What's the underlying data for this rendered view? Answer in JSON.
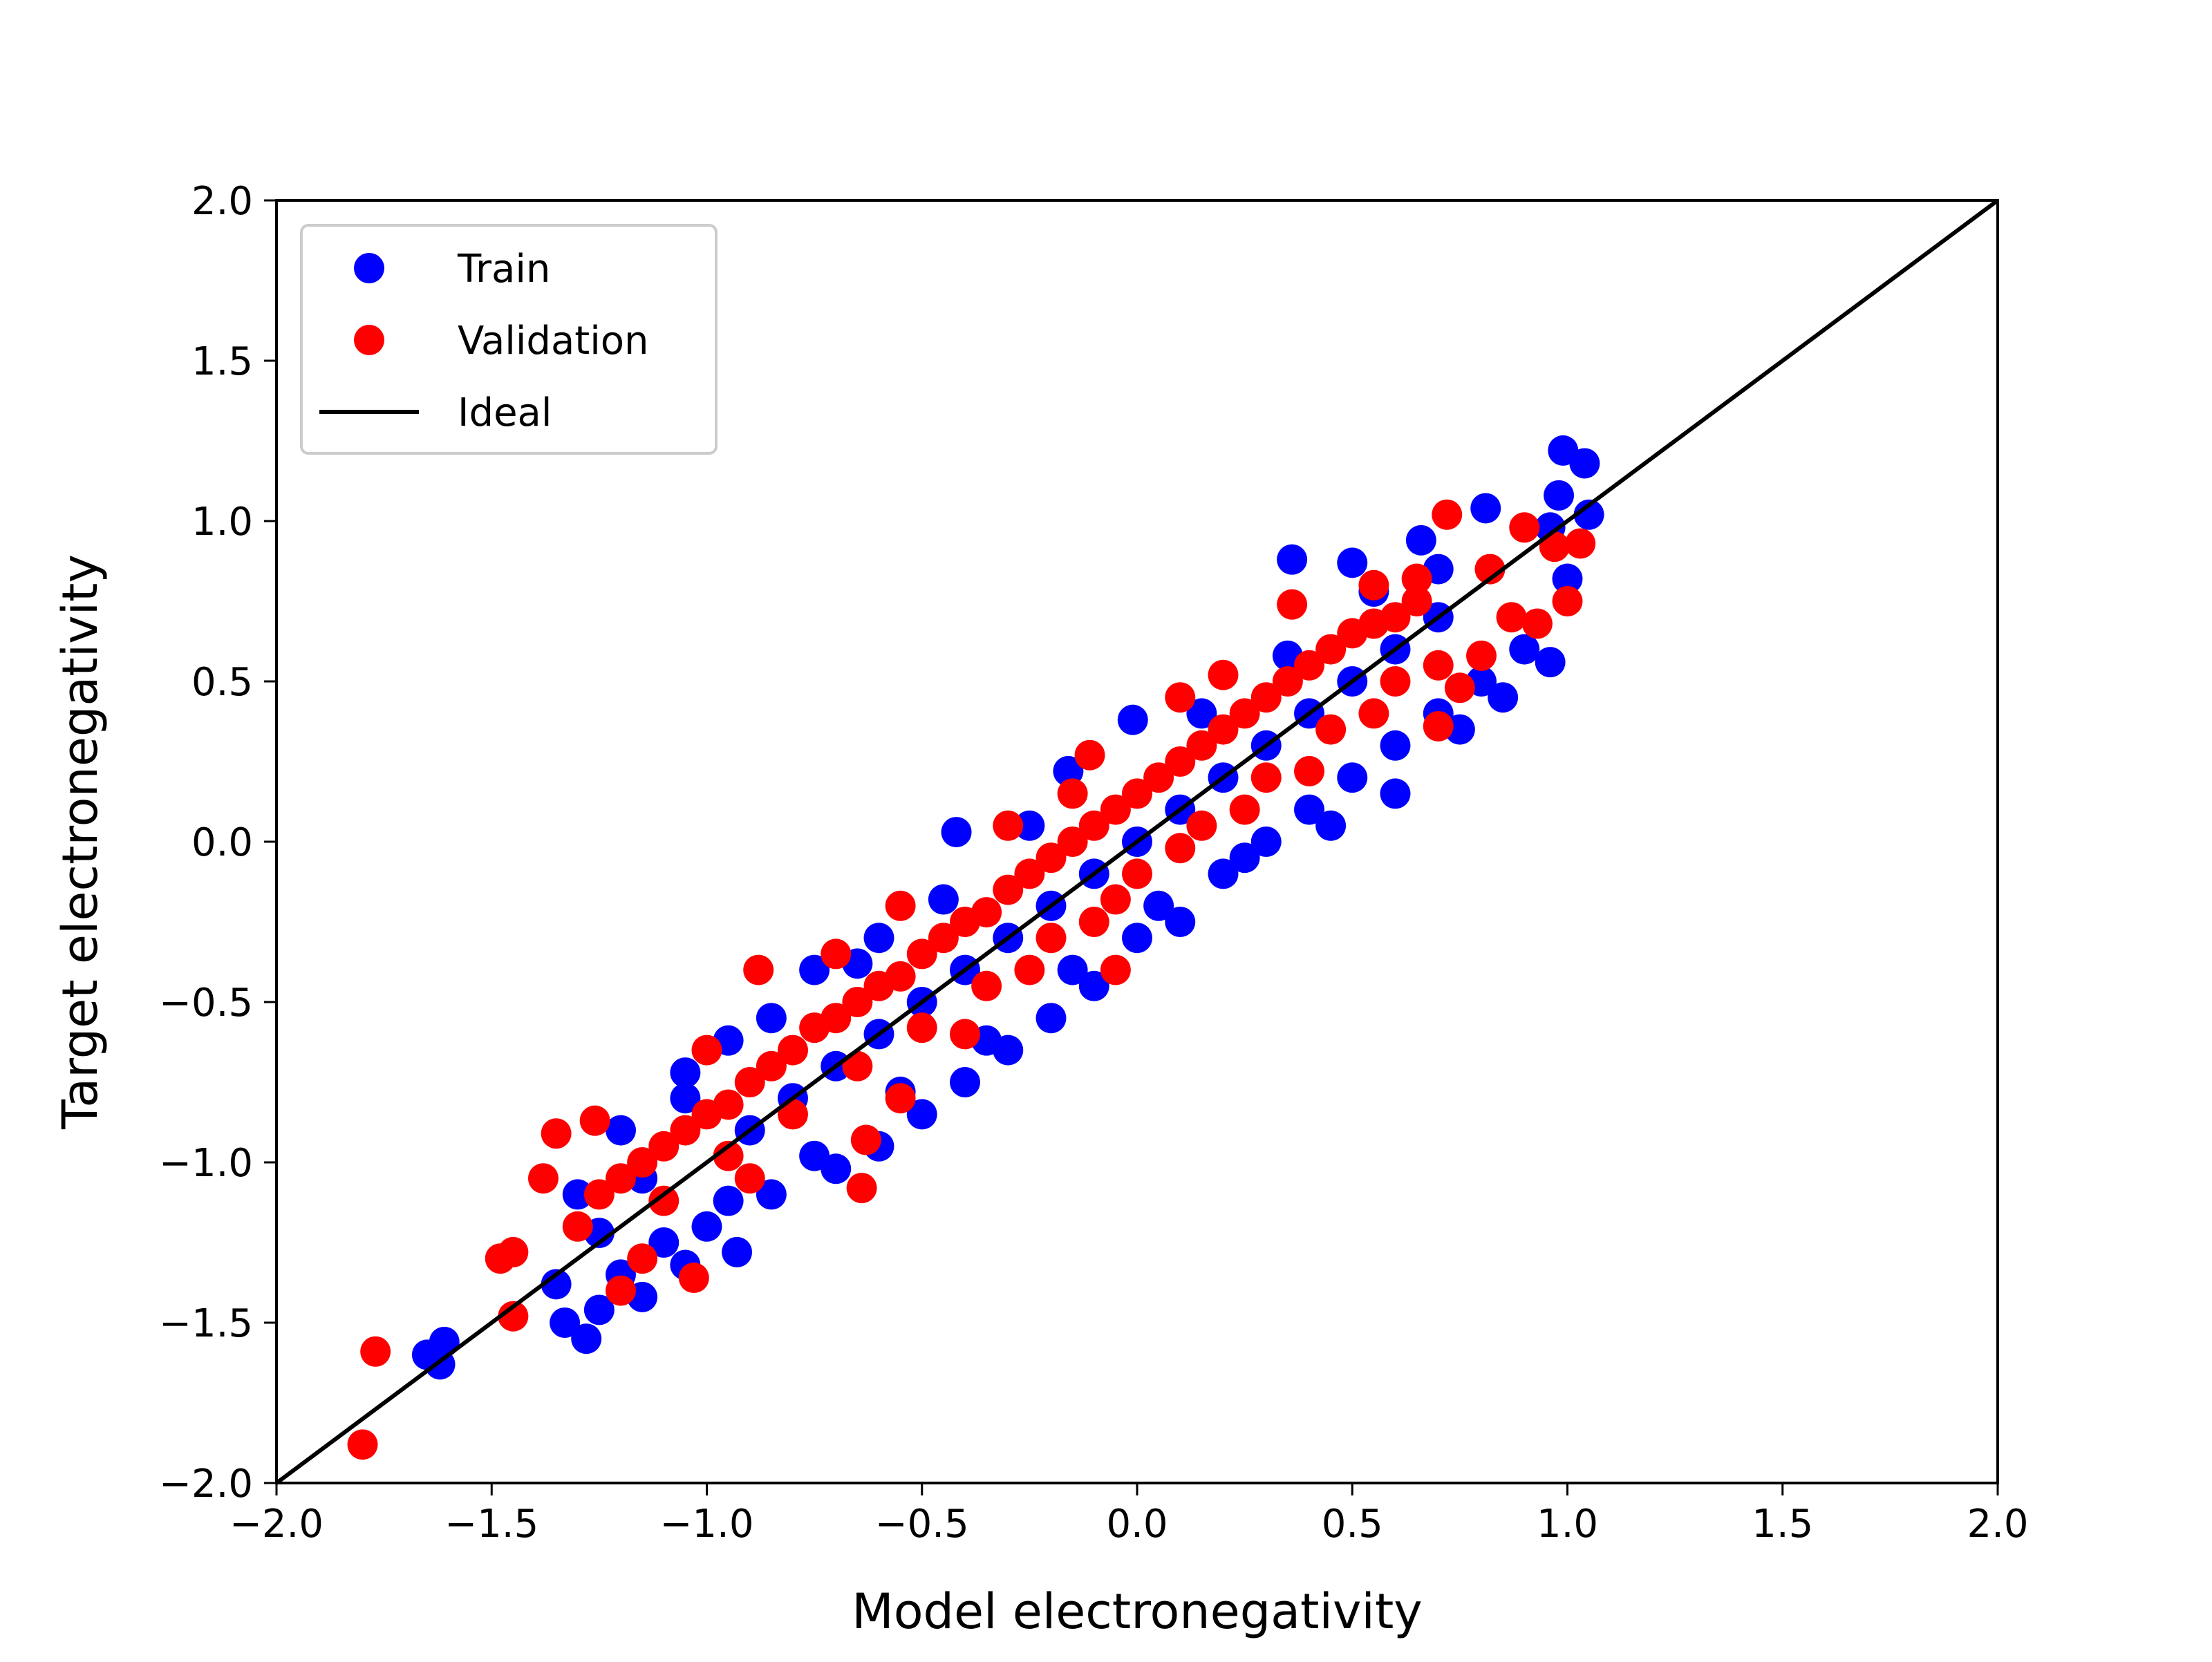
{
  "chart_data": {
    "type": "scatter",
    "title": "",
    "xlabel": "Model electronegativity",
    "ylabel": "Target electronegativity",
    "xlim": [
      -2.0,
      2.0
    ],
    "ylim": [
      -2.0,
      2.0
    ],
    "xticks": [
      "−2.0",
      "−1.5",
      "−1.0",
      "−0.5",
      "0.0",
      "0.5",
      "1.0",
      "1.5",
      "2.0"
    ],
    "yticks": [
      "−2.0",
      "−1.5",
      "−1.0",
      "−0.5",
      "0.0",
      "0.5",
      "1.0",
      "1.5",
      "2.0"
    ],
    "grid": false,
    "legend_position": "top-left",
    "series": [
      {
        "name": "Train",
        "color": "#0000ff",
        "marker": "circle",
        "points": [
          [
            -1.65,
            -1.6
          ],
          [
            -1.62,
            -1.63
          ],
          [
            -1.61,
            -1.56
          ],
          [
            -1.33,
            -1.5
          ],
          [
            -1.28,
            -1.55
          ],
          [
            -1.25,
            -1.46
          ],
          [
            -1.15,
            -1.42
          ],
          [
            -1.05,
            -1.32
          ],
          [
            -0.93,
            -1.28
          ],
          [
            -1.35,
            -1.38
          ],
          [
            -1.2,
            -1.35
          ],
          [
            -1.1,
            -1.25
          ],
          [
            -1.0,
            -1.2
          ],
          [
            -0.85,
            -1.1
          ],
          [
            -0.7,
            -1.02
          ],
          [
            -0.6,
            -0.95
          ],
          [
            -0.5,
            -0.85
          ],
          [
            -0.4,
            -0.75
          ],
          [
            -0.3,
            -0.65
          ],
          [
            -0.2,
            -0.55
          ],
          [
            -0.1,
            -0.45
          ],
          [
            0.0,
            -0.3
          ],
          [
            0.1,
            -0.25
          ],
          [
            0.2,
            -0.1
          ],
          [
            0.3,
            0.0
          ],
          [
            0.4,
            0.1
          ],
          [
            0.5,
            0.2
          ],
          [
            0.6,
            0.3
          ],
          [
            0.7,
            0.4
          ],
          [
            0.8,
            0.5
          ],
          [
            0.9,
            0.6
          ],
          [
            0.96,
            0.56
          ],
          [
            1.0,
            0.82
          ],
          [
            1.05,
            1.02
          ],
          [
            0.98,
            1.08
          ],
          [
            0.99,
            1.22
          ],
          [
            1.04,
            1.18
          ],
          [
            0.96,
            0.98
          ],
          [
            0.36,
            0.88
          ],
          [
            0.5,
            0.87
          ],
          [
            0.81,
            1.04
          ],
          [
            0.66,
            0.94
          ],
          [
            -0.42,
            0.03
          ],
          [
            -0.16,
            0.22
          ],
          [
            -0.01,
            0.38
          ],
          [
            -0.6,
            -0.3
          ],
          [
            -0.75,
            -0.4
          ],
          [
            -0.95,
            -0.62
          ],
          [
            -1.05,
            -0.72
          ],
          [
            -1.2,
            -0.9
          ],
          [
            -1.3,
            -1.1
          ],
          [
            -0.9,
            -0.9
          ],
          [
            -0.8,
            -0.8
          ],
          [
            -0.7,
            -0.7
          ],
          [
            -0.6,
            -0.6
          ],
          [
            -0.5,
            -0.5
          ],
          [
            -0.4,
            -0.4
          ],
          [
            -0.3,
            -0.3
          ],
          [
            -0.2,
            -0.2
          ],
          [
            -0.1,
            -0.1
          ],
          [
            0.0,
            0.0
          ],
          [
            0.1,
            0.1
          ],
          [
            0.2,
            0.2
          ],
          [
            0.3,
            0.3
          ],
          [
            0.4,
            0.4
          ],
          [
            0.5,
            0.5
          ],
          [
            0.6,
            0.6
          ],
          [
            0.7,
            0.7
          ],
          [
            0.25,
            -0.05
          ],
          [
            0.05,
            -0.2
          ],
          [
            -0.15,
            -0.4
          ],
          [
            -0.35,
            -0.62
          ],
          [
            -0.55,
            -0.78
          ],
          [
            -0.75,
            -0.98
          ],
          [
            -0.95,
            -1.12
          ],
          [
            0.45,
            0.05
          ],
          [
            0.6,
            0.15
          ],
          [
            0.75,
            0.35
          ],
          [
            0.85,
            0.45
          ],
          [
            -0.25,
            0.05
          ],
          [
            -0.45,
            -0.18
          ],
          [
            -0.65,
            -0.38
          ],
          [
            -0.85,
            -0.55
          ],
          [
            -1.05,
            -0.8
          ],
          [
            0.15,
            0.4
          ],
          [
            0.35,
            0.58
          ],
          [
            0.55,
            0.78
          ],
          [
            0.7,
            0.85
          ],
          [
            -1.15,
            -1.05
          ],
          [
            -1.25,
            -1.22
          ]
        ]
      },
      {
        "name": "Validation",
        "color": "#ff0000",
        "marker": "circle",
        "points": [
          [
            -1.8,
            -1.88
          ],
          [
            -1.77,
            -1.59
          ],
          [
            -1.48,
            -1.3
          ],
          [
            -1.45,
            -1.28
          ],
          [
            -1.45,
            -1.48
          ],
          [
            -1.35,
            -0.91
          ],
          [
            -1.26,
            -0.87
          ],
          [
            -1.15,
            -1.3
          ],
          [
            -1.03,
            -1.36
          ],
          [
            -0.88,
            -0.4
          ],
          [
            -0.64,
            -1.08
          ],
          [
            -0.63,
            -0.93
          ],
          [
            -0.55,
            -0.8
          ],
          [
            -0.4,
            -0.6
          ],
          [
            -0.25,
            -0.4
          ],
          [
            -0.1,
            -0.25
          ],
          [
            0.0,
            -0.1
          ],
          [
            0.15,
            0.05
          ],
          [
            0.3,
            0.2
          ],
          [
            0.45,
            0.35
          ],
          [
            0.6,
            0.5
          ],
          [
            0.7,
            0.36
          ],
          [
            0.72,
            1.02
          ],
          [
            0.82,
            0.85
          ],
          [
            0.9,
            0.98
          ],
          [
            0.97,
            0.92
          ],
          [
            1.03,
            0.93
          ],
          [
            1.0,
            0.75
          ],
          [
            0.87,
            0.7
          ],
          [
            0.93,
            0.68
          ],
          [
            0.36,
            0.74
          ],
          [
            0.55,
            0.8
          ],
          [
            0.65,
            0.82
          ],
          [
            -0.11,
            0.27
          ],
          [
            -1.3,
            -1.2
          ],
          [
            -1.2,
            -1.05
          ],
          [
            -1.1,
            -0.95
          ],
          [
            -1.0,
            -0.85
          ],
          [
            -0.9,
            -0.75
          ],
          [
            -0.8,
            -0.65
          ],
          [
            -0.7,
            -0.55
          ],
          [
            -0.6,
            -0.45
          ],
          [
            -0.5,
            -0.35
          ],
          [
            -0.4,
            -0.25
          ],
          [
            -0.3,
            -0.15
          ],
          [
            -0.2,
            -0.05
          ],
          [
            -0.1,
            0.05
          ],
          [
            0.0,
            0.15
          ],
          [
            0.1,
            0.25
          ],
          [
            0.2,
            0.35
          ],
          [
            0.3,
            0.45
          ],
          [
            0.4,
            0.55
          ],
          [
            0.5,
            0.65
          ],
          [
            0.6,
            0.7
          ],
          [
            -1.25,
            -1.1
          ],
          [
            -1.15,
            -1.0
          ],
          [
            -1.05,
            -0.9
          ],
          [
            -0.95,
            -0.82
          ],
          [
            -0.85,
            -0.7
          ],
          [
            -0.75,
            -0.58
          ],
          [
            -0.65,
            -0.5
          ],
          [
            -0.55,
            -0.42
          ],
          [
            -0.45,
            -0.3
          ],
          [
            -0.35,
            -0.22
          ],
          [
            -0.25,
            -0.1
          ],
          [
            -0.15,
            0.0
          ],
          [
            -0.05,
            0.1
          ],
          [
            0.05,
            0.2
          ],
          [
            0.15,
            0.3
          ],
          [
            0.25,
            0.4
          ],
          [
            0.35,
            0.5
          ],
          [
            0.45,
            0.6
          ],
          [
            0.55,
            0.68
          ],
          [
            0.65,
            0.75
          ],
          [
            -1.1,
            -1.12
          ],
          [
            -0.95,
            -0.98
          ],
          [
            -0.8,
            -0.85
          ],
          [
            -0.65,
            -0.7
          ],
          [
            -0.5,
            -0.58
          ],
          [
            -0.35,
            -0.45
          ],
          [
            -0.2,
            -0.3
          ],
          [
            -0.05,
            -0.18
          ],
          [
            0.1,
            -0.02
          ],
          [
            0.25,
            0.1
          ],
          [
            0.4,
            0.22
          ],
          [
            0.55,
            0.4
          ],
          [
            0.7,
            0.55
          ],
          [
            -1.38,
            -1.05
          ],
          [
            -1.0,
            -0.65
          ],
          [
            -0.7,
            -0.35
          ],
          [
            -0.55,
            -0.2
          ],
          [
            -0.3,
            0.05
          ],
          [
            -0.15,
            0.15
          ],
          [
            0.1,
            0.45
          ],
          [
            0.2,
            0.52
          ],
          [
            -0.05,
            -0.4
          ],
          [
            -0.9,
            -1.05
          ],
          [
            -1.2,
            -1.4
          ],
          [
            0.8,
            0.58
          ],
          [
            0.75,
            0.48
          ]
        ]
      },
      {
        "name": "Ideal",
        "color": "#000000",
        "marker": "line",
        "points": [
          [
            -2.0,
            -2.0
          ],
          [
            2.0,
            2.0
          ]
        ]
      }
    ]
  }
}
